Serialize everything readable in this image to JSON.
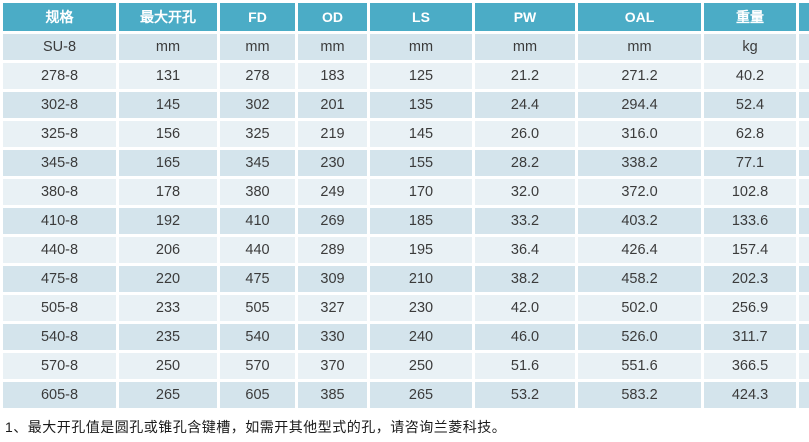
{
  "table": {
    "columns": [
      {
        "label": "规格"
      },
      {
        "label": "最大开孔"
      },
      {
        "label": "FD"
      },
      {
        "label": "OD"
      },
      {
        "label": "LS"
      },
      {
        "label": "PW"
      },
      {
        "label": "OAL"
      },
      {
        "label": "重量"
      }
    ],
    "unit_row": [
      "SU-8",
      "mm",
      "mm",
      "mm",
      "mm",
      "mm",
      "mm",
      "kg"
    ],
    "rows": [
      [
        "278-8",
        "131",
        "278",
        "183",
        "125",
        "21.2",
        "271.2",
        "40.2"
      ],
      [
        "302-8",
        "145",
        "302",
        "201",
        "135",
        "24.4",
        "294.4",
        "52.4"
      ],
      [
        "325-8",
        "156",
        "325",
        "219",
        "145",
        "26.0",
        "316.0",
        "62.8"
      ],
      [
        "345-8",
        "165",
        "345",
        "230",
        "155",
        "28.2",
        "338.2",
        "77.1"
      ],
      [
        "380-8",
        "178",
        "380",
        "249",
        "170",
        "32.0",
        "372.0",
        "102.8"
      ],
      [
        "410-8",
        "192",
        "410",
        "269",
        "185",
        "33.2",
        "403.2",
        "133.6"
      ],
      [
        "440-8",
        "206",
        "440",
        "289",
        "195",
        "36.4",
        "426.4",
        "157.4"
      ],
      [
        "475-8",
        "220",
        "475",
        "309",
        "210",
        "38.2",
        "458.2",
        "202.3"
      ],
      [
        "505-8",
        "233",
        "505",
        "327",
        "230",
        "42.0",
        "502.0",
        "256.9"
      ],
      [
        "540-8",
        "235",
        "540",
        "330",
        "240",
        "46.0",
        "526.0",
        "311.7"
      ],
      [
        "570-8",
        "250",
        "570",
        "370",
        "250",
        "51.6",
        "551.6",
        "366.5"
      ],
      [
        "605-8",
        "265",
        "605",
        "385",
        "265",
        "53.2",
        "583.2",
        "424.3"
      ]
    ]
  },
  "footnote": "1、最大开孔值是圆孔或锥孔含键槽，如需开其他型式的孔，请咨询兰菱科技。",
  "colors": {
    "header_bg": "#4bacc6",
    "header_text": "#ffffff",
    "band_dark": "#d4e4ec",
    "band_light": "#e9f1f5",
    "cell_text": "#3b3b3b"
  }
}
